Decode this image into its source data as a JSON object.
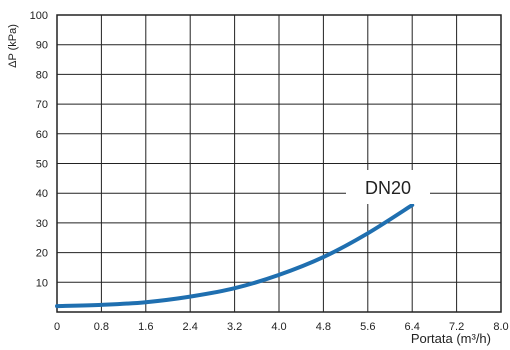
{
  "chart_data": {
    "type": "line",
    "xlabel": "Portata (m³/h)",
    "ylabel": "ΔP (kPa)",
    "xlim": [
      0,
      8.0
    ],
    "ylim": [
      0,
      100
    ],
    "x_ticks": [
      "0",
      "0.8",
      "1.6",
      "2.4",
      "3.2",
      "4.0",
      "4.8",
      "5.6",
      "6.4",
      "7.2",
      "8.0"
    ],
    "y_ticks": [
      "10",
      "20",
      "30",
      "40",
      "50",
      "60",
      "70",
      "80",
      "90",
      "100"
    ],
    "grid": true,
    "series": [
      {
        "name": "DN20",
        "color": "#1f6fb0",
        "x": [
          0,
          0.8,
          1.6,
          2.4,
          3.2,
          4.0,
          4.8,
          5.6,
          6.4
        ],
        "y": [
          2.0,
          2.4,
          3.3,
          5.2,
          8.0,
          12.5,
          18.5,
          26.5,
          36.0
        ]
      }
    ]
  }
}
